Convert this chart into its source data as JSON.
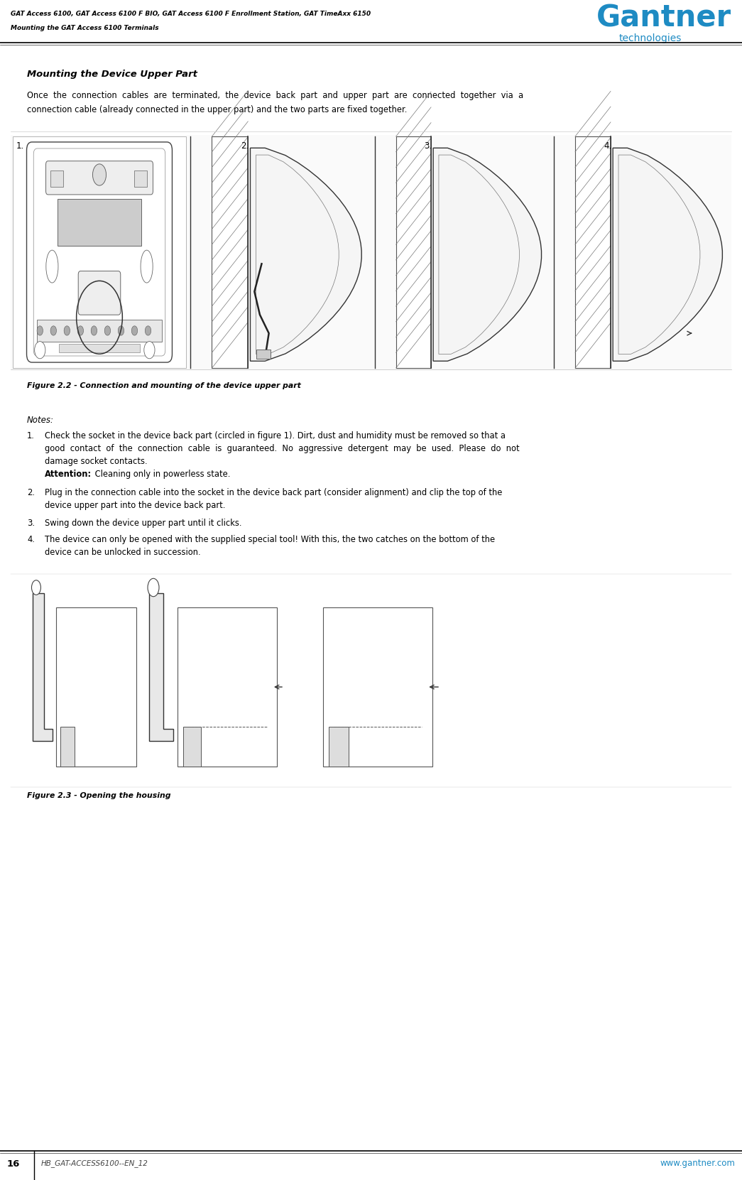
{
  "page_width": 10.45,
  "page_height": 16.61,
  "bg_color": "#ffffff",
  "header_line1": "GAT Access 6100, GAT Access 6100 F BIO, GAT Access 6100 F Enrollment Station, GAT TimeAxx 6150",
  "header_line2": "Mounting the GAT Access 6100 Terminals",
  "header_text_color": "#000000",
  "logo_text1": "Gantner",
  "logo_text2": "technologies",
  "logo_color": "#1e8bc3",
  "section_title": "Mounting the Device Upper Part",
  "figure_caption1": "Figure 2.2 - Connection and mounting of the device upper part",
  "notes_title": "Notes:",
  "note1_line1": "Check the socket in the device back part (circled in figure 1). Dirt, dust and humidity must be removed so that a",
  "note1_line2": "good  contact  of  the  connection  cable  is  guaranteed.  No  aggressive  detergent  may  be  used.  Please  do  not",
  "note1_line3": "damage socket contacts.",
  "note1_attention_bold": "Attention:",
  "note1_attention_rest": " Cleaning only in powerless state.",
  "note2_line1": "Plug in the connection cable into the socket in the device back part (consider alignment) and clip the top of the",
  "note2_line2": "device upper part into the device back part.",
  "note3": "Swing down the device upper part until it clicks.",
  "note4_line1": "The device can only be opened with the supplied special tool! With this, the two catches on the bottom of the",
  "note4_line2": "device can be unlocked in succession.",
  "figure_caption2": "Figure 2.3 - Opening the housing",
  "footer_page": "16",
  "footer_doc": "HB_GAT-ACCESS6100--EN_12",
  "footer_url": "www.gantner.com",
  "footer_color": "#1e8bc3",
  "text_color": "#000000",
  "divider_color": "#cccccc",
  "body_line1": "Once  the  connection  cables  are  terminated,  the  device  back  part  and  upper  part  are  connected  together  via  a",
  "body_line2": "connection cable (already connected in the upper part) and the two parts are fixed together."
}
